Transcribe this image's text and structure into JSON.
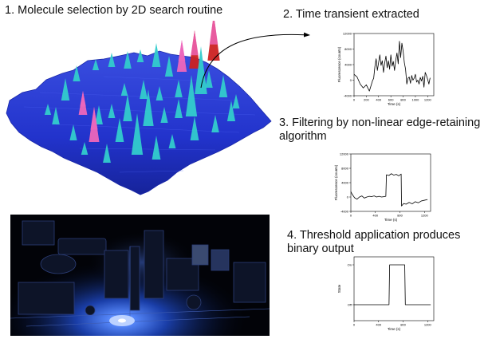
{
  "steps": {
    "step1": "1. Molecule selection by 2D search routine",
    "step2": "2. Time transient extracted",
    "step3": "3. Filtering by non-linear edge-retaining algorithm",
    "step4": "4. Threshold application produces binary output"
  },
  "colors": {
    "surface": "#2233cc",
    "peak_cyan": "#33cccc",
    "peak_pink": "#ee66bb",
    "peak_red": "#cc2222",
    "photo_glow": "#2a6cff"
  },
  "chart_data": [
    {
      "type": "line",
      "title": "",
      "xlabel": "Time (s)",
      "ylabel": "Fluorescence (counts)",
      "xlim": [
        0,
        1300
      ],
      "ylim": [
        -4000,
        12000
      ],
      "xticks": [
        "0",
        "200",
        "400",
        "600",
        "800",
        "1000",
        "1200"
      ],
      "yticks": [
        "-4000",
        "0",
        "4000",
        "8000",
        "12000"
      ],
      "x": [
        0,
        50,
        100,
        150,
        200,
        250,
        300,
        320,
        340,
        360,
        380,
        400,
        420,
        440,
        460,
        480,
        500,
        520,
        540,
        560,
        580,
        600,
        620,
        640,
        660,
        680,
        700,
        720,
        740,
        760,
        780,
        800,
        820,
        840,
        860,
        880,
        900,
        920,
        940,
        960,
        980,
        1000,
        1020,
        1040,
        1060,
        1080,
        1100,
        1120,
        1140,
        1160,
        1180,
        1200,
        1220,
        1240
      ],
      "y": [
        1500,
        800,
        -1000,
        -2000,
        -1200,
        -2800,
        -200,
        500,
        3500,
        5500,
        2500,
        4500,
        6500,
        3800,
        5000,
        2000,
        4500,
        6200,
        3200,
        5000,
        2800,
        6500,
        3600,
        4800,
        2500,
        5200,
        7000,
        4200,
        10000,
        5800,
        9500,
        7500,
        4500,
        2800,
        -1000,
        500,
        800,
        -800,
        1200,
        0,
        500,
        1500,
        -500,
        0,
        -1000,
        700,
        -200,
        1000,
        -1800,
        2000,
        1200,
        200,
        -1000,
        600
      ]
    },
    {
      "type": "line",
      "title": "",
      "xlabel": "Time (s)",
      "ylabel": "Fluorescence (counts)",
      "xlim": [
        0,
        1300
      ],
      "ylim": [
        -4000,
        12000
      ],
      "xticks": [
        "0",
        "400",
        "800",
        "1200"
      ],
      "yticks": [
        "-4000",
        "0",
        "4000",
        "8000",
        "12000"
      ],
      "x": [
        0,
        20,
        60,
        100,
        140,
        180,
        220,
        260,
        300,
        340,
        380,
        420,
        460,
        500,
        540,
        570,
        580,
        620,
        660,
        700,
        740,
        780,
        820,
        826,
        860,
        900,
        950,
        1000,
        1050,
        1100,
        1150,
        1200,
        1250
      ],
      "y": [
        1500,
        800,
        -200,
        -600,
        0,
        300,
        -300,
        0,
        200,
        100,
        300,
        0,
        200,
        0,
        100,
        200,
        6200,
        6000,
        6500,
        6100,
        6300,
        5900,
        6400,
        -2500,
        -1800,
        -2000,
        -1500,
        -1900,
        -1300,
        -1600,
        -1100,
        -900,
        -700
      ]
    },
    {
      "type": "line",
      "title": "",
      "xlabel": "Time (s)",
      "ylabel": "State",
      "xlim": [
        0,
        1300
      ],
      "ylim": [
        -0.4,
        1.2
      ],
      "xticks": [
        "0",
        "400",
        "800",
        "1200"
      ],
      "yticks": [
        "Off",
        "On"
      ],
      "x": [
        0,
        570,
        580,
        826,
        836,
        1250
      ],
      "y": [
        0,
        0,
        1,
        1,
        0,
        0
      ]
    }
  ]
}
